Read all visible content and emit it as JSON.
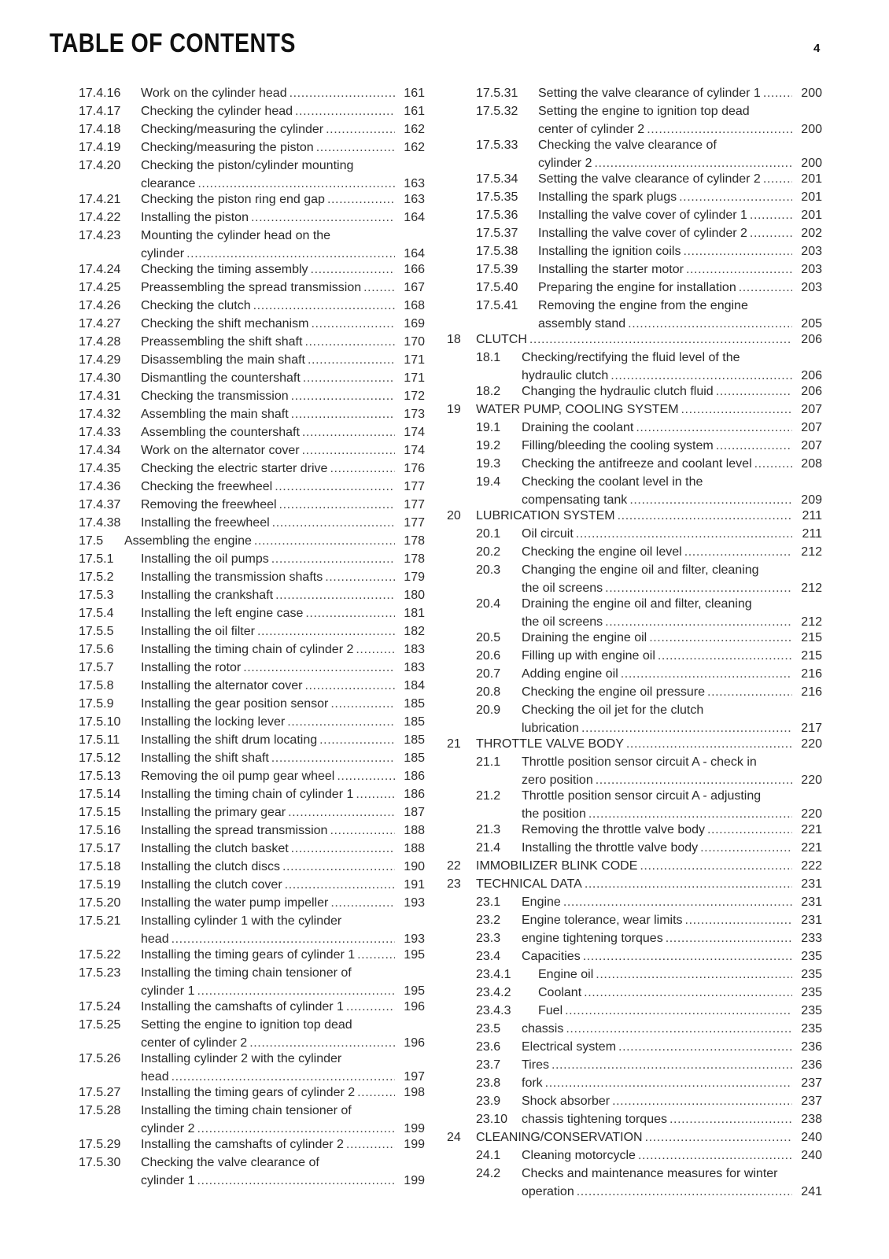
{
  "header": {
    "title": "TABLE OF CONTENTS",
    "page_number": "4"
  },
  "left": {
    "entries": [
      {
        "level": "sub",
        "num": "17.4.16",
        "lines": [
          "Work on the cylinder head"
        ],
        "page": "161"
      },
      {
        "level": "sub",
        "num": "17.4.17",
        "lines": [
          "Checking the cylinder head"
        ],
        "page": "161"
      },
      {
        "level": "sub",
        "num": "17.4.18",
        "lines": [
          "Checking/measuring the cylinder"
        ],
        "page": "162"
      },
      {
        "level": "sub",
        "num": "17.4.19",
        "lines": [
          "Checking/measuring the piston"
        ],
        "page": "162"
      },
      {
        "level": "sub",
        "num": "17.4.20",
        "lines": [
          "Checking the piston/cylinder mounting",
          "clearance"
        ],
        "page": "163"
      },
      {
        "level": "sub",
        "num": "17.4.21",
        "lines": [
          "Checking the piston ring end gap"
        ],
        "page": "163"
      },
      {
        "level": "sub",
        "num": "17.4.22",
        "lines": [
          "Installing the piston"
        ],
        "page": "164"
      },
      {
        "level": "sub",
        "num": "17.4.23",
        "lines": [
          "Mounting the cylinder head on the",
          "cylinder"
        ],
        "page": "164"
      },
      {
        "level": "sub",
        "num": "17.4.24",
        "lines": [
          "Checking the timing assembly"
        ],
        "page": "166"
      },
      {
        "level": "sub",
        "num": "17.4.25",
        "lines": [
          "Preassembling the spread transmission"
        ],
        "page": "167"
      },
      {
        "level": "sub",
        "num": "17.4.26",
        "lines": [
          "Checking the clutch"
        ],
        "page": "168"
      },
      {
        "level": "sub",
        "num": "17.4.27",
        "lines": [
          "Checking the shift mechanism"
        ],
        "page": "169"
      },
      {
        "level": "sub",
        "num": "17.4.28",
        "lines": [
          "Preassembling the shift shaft"
        ],
        "page": "170"
      },
      {
        "level": "sub",
        "num": "17.4.29",
        "lines": [
          "Disassembling the main shaft"
        ],
        "page": "171"
      },
      {
        "level": "sub",
        "num": "17.4.30",
        "lines": [
          "Dismantling the countershaft"
        ],
        "page": "171"
      },
      {
        "level": "sub",
        "num": "17.4.31",
        "lines": [
          "Checking the transmission"
        ],
        "page": "172"
      },
      {
        "level": "sub",
        "num": "17.4.32",
        "lines": [
          "Assembling the main shaft"
        ],
        "page": "173"
      },
      {
        "level": "sub",
        "num": "17.4.33",
        "lines": [
          "Assembling the countershaft"
        ],
        "page": "174"
      },
      {
        "level": "sub",
        "num": "17.4.34",
        "lines": [
          "Work on the alternator cover"
        ],
        "page": "174"
      },
      {
        "level": "sub",
        "num": "17.4.35",
        "lines": [
          "Checking the electric starter drive"
        ],
        "page": "176"
      },
      {
        "level": "sub",
        "num": "17.4.36",
        "lines": [
          "Checking the freewheel"
        ],
        "page": "177"
      },
      {
        "level": "sub",
        "num": "17.4.37",
        "lines": [
          "Removing the freewheel"
        ],
        "page": "177"
      },
      {
        "level": "sub",
        "num": "17.4.38",
        "lines": [
          "Installing the freewheel"
        ],
        "page": "177"
      },
      {
        "level": "section",
        "num": "17.5",
        "lines": [
          "Assembling the engine"
        ],
        "page": "178"
      },
      {
        "level": "sub",
        "num": "17.5.1",
        "lines": [
          "Installing the oil pumps"
        ],
        "page": "178"
      },
      {
        "level": "sub",
        "num": "17.5.2",
        "lines": [
          "Installing the transmission shafts"
        ],
        "page": "179"
      },
      {
        "level": "sub",
        "num": "17.5.3",
        "lines": [
          "Installing the crankshaft"
        ],
        "page": "180"
      },
      {
        "level": "sub",
        "num": "17.5.4",
        "lines": [
          "Installing the left engine case"
        ],
        "page": "181"
      },
      {
        "level": "sub",
        "num": "17.5.5",
        "lines": [
          "Installing the oil filter"
        ],
        "page": "182"
      },
      {
        "level": "sub",
        "num": "17.5.6",
        "lines": [
          "Installing the timing chain of cylinder 2"
        ],
        "page": "183"
      },
      {
        "level": "sub",
        "num": "17.5.7",
        "lines": [
          "Installing the rotor"
        ],
        "page": "183"
      },
      {
        "level": "sub",
        "num": "17.5.8",
        "lines": [
          "Installing the alternator cover"
        ],
        "page": "184"
      },
      {
        "level": "sub",
        "num": "17.5.9",
        "lines": [
          "Installing the gear position sensor"
        ],
        "page": "185"
      },
      {
        "level": "sub",
        "num": "17.5.10",
        "lines": [
          "Installing the locking lever"
        ],
        "page": "185"
      },
      {
        "level": "sub",
        "num": "17.5.11",
        "lines": [
          "Installing the shift drum locating"
        ],
        "page": "185"
      },
      {
        "level": "sub",
        "num": "17.5.12",
        "lines": [
          "Installing the shift shaft"
        ],
        "page": "185"
      },
      {
        "level": "sub",
        "num": "17.5.13",
        "lines": [
          "Removing the oil pump gear wheel"
        ],
        "page": "186"
      },
      {
        "level": "sub",
        "num": "17.5.14",
        "lines": [
          "Installing the timing chain of cylinder 1"
        ],
        "page": "186"
      },
      {
        "level": "sub",
        "num": "17.5.15",
        "lines": [
          "Installing the primary gear"
        ],
        "page": "187"
      },
      {
        "level": "sub",
        "num": "17.5.16",
        "lines": [
          "Installing the spread transmission"
        ],
        "page": "188"
      },
      {
        "level": "sub",
        "num": "17.5.17",
        "lines": [
          "Installing the clutch basket"
        ],
        "page": "188"
      },
      {
        "level": "sub",
        "num": "17.5.18",
        "lines": [
          "Installing the clutch discs"
        ],
        "page": "190"
      },
      {
        "level": "sub",
        "num": "17.5.19",
        "lines": [
          "Installing the clutch cover"
        ],
        "page": "191"
      },
      {
        "level": "sub",
        "num": "17.5.20",
        "lines": [
          "Installing the water pump impeller"
        ],
        "page": "193"
      },
      {
        "level": "sub",
        "num": "17.5.21",
        "lines": [
          "Installing cylinder 1 with the cylinder",
          "head"
        ],
        "page": "193"
      },
      {
        "level": "sub",
        "num": "17.5.22",
        "lines": [
          "Installing the timing gears of cylinder 1"
        ],
        "page": "195"
      },
      {
        "level": "sub",
        "num": "17.5.23",
        "lines": [
          "Installing the timing chain tensioner of",
          "cylinder 1"
        ],
        "page": "195"
      },
      {
        "level": "sub",
        "num": "17.5.24",
        "lines": [
          "Installing the camshafts of cylinder 1"
        ],
        "page": "196"
      },
      {
        "level": "sub",
        "num": "17.5.25",
        "lines": [
          "Setting the engine to ignition top dead",
          "center of cylinder 2"
        ],
        "page": "196"
      },
      {
        "level": "sub",
        "num": "17.5.26",
        "lines": [
          "Installing cylinder 2 with the cylinder",
          "head"
        ],
        "page": "197"
      },
      {
        "level": "sub",
        "num": "17.5.27",
        "lines": [
          "Installing the timing gears of cylinder 2"
        ],
        "page": "198"
      },
      {
        "level": "sub",
        "num": "17.5.28",
        "lines": [
          "Installing the timing chain tensioner of",
          "cylinder 2"
        ],
        "page": "199"
      },
      {
        "level": "sub",
        "num": "17.5.29",
        "lines": [
          "Installing the camshafts of cylinder 2"
        ],
        "page": "199"
      },
      {
        "level": "sub",
        "num": "17.5.30",
        "lines": [
          "Checking the valve clearance of",
          "cylinder 1"
        ],
        "page": "199"
      }
    ]
  },
  "right": {
    "entries": [
      {
        "level": "sub",
        "num": "17.5.31",
        "lines": [
          "Setting the valve clearance of cylinder 1"
        ],
        "page": "200"
      },
      {
        "level": "sub",
        "num": "17.5.32",
        "lines": [
          "Setting the engine to ignition top dead",
          "center of cylinder 2"
        ],
        "page": "200"
      },
      {
        "level": "sub",
        "num": "17.5.33",
        "lines": [
          "Checking the valve clearance of",
          "cylinder 2"
        ],
        "page": "200"
      },
      {
        "level": "sub",
        "num": "17.5.34",
        "lines": [
          "Setting the valve clearance of cylinder 2"
        ],
        "page": "201"
      },
      {
        "level": "sub",
        "num": "17.5.35",
        "lines": [
          "Installing the spark plugs"
        ],
        "page": "201"
      },
      {
        "level": "sub",
        "num": "17.5.36",
        "lines": [
          "Installing the valve cover of cylinder 1"
        ],
        "page": "201"
      },
      {
        "level": "sub",
        "num": "17.5.37",
        "lines": [
          "Installing the valve cover of cylinder 2"
        ],
        "page": "202"
      },
      {
        "level": "sub",
        "num": "17.5.38",
        "lines": [
          "Installing the ignition coils"
        ],
        "page": "203"
      },
      {
        "level": "sub",
        "num": "17.5.39",
        "lines": [
          "Installing the starter motor"
        ],
        "page": "203"
      },
      {
        "level": "sub",
        "num": "17.5.40",
        "lines": [
          "Preparing the engine for installation"
        ],
        "page": "203"
      },
      {
        "level": "sub",
        "num": "17.5.41",
        "lines": [
          "Removing the engine from the engine",
          "assembly stand"
        ],
        "page": "205"
      },
      {
        "level": "chapter",
        "num": "18",
        "lines": [
          "CLUTCH"
        ],
        "page": "206"
      },
      {
        "level": "section",
        "num": "18.1",
        "lines": [
          "Checking/rectifying the fluid level of the",
          "hydraulic clutch"
        ],
        "page": "206"
      },
      {
        "level": "section",
        "num": "18.2",
        "lines": [
          "Changing the hydraulic clutch fluid"
        ],
        "page": "206"
      },
      {
        "level": "chapter",
        "num": "19",
        "lines": [
          "WATER PUMP, COOLING SYSTEM"
        ],
        "page": "207"
      },
      {
        "level": "section",
        "num": "19.1",
        "lines": [
          "Draining the coolant"
        ],
        "page": "207"
      },
      {
        "level": "section",
        "num": "19.2",
        "lines": [
          "Filling/bleeding the cooling system"
        ],
        "page": "207"
      },
      {
        "level": "section",
        "num": "19.3",
        "lines": [
          "Checking the antifreeze and coolant level"
        ],
        "page": "208"
      },
      {
        "level": "section",
        "num": "19.4",
        "lines": [
          "Checking the coolant level in the",
          "compensating tank"
        ],
        "page": "209"
      },
      {
        "level": "chapter",
        "num": "20",
        "lines": [
          "LUBRICATION SYSTEM"
        ],
        "page": "211"
      },
      {
        "level": "section",
        "num": "20.1",
        "lines": [
          "Oil circuit"
        ],
        "page": "211"
      },
      {
        "level": "section",
        "num": "20.2",
        "lines": [
          "Checking the engine oil level"
        ],
        "page": "212"
      },
      {
        "level": "section",
        "num": "20.3",
        "lines": [
          "Changing the engine oil and filter, cleaning",
          "the oil screens"
        ],
        "page": "212"
      },
      {
        "level": "section",
        "num": "20.4",
        "lines": [
          "Draining the engine oil and filter, cleaning",
          "the oil screens"
        ],
        "page": "212"
      },
      {
        "level": "section",
        "num": "20.5",
        "lines": [
          "Draining the engine oil"
        ],
        "page": "215"
      },
      {
        "level": "section",
        "num": "20.6",
        "lines": [
          "Filling up with engine oil"
        ],
        "page": "215"
      },
      {
        "level": "section",
        "num": "20.7",
        "lines": [
          "Adding engine oil"
        ],
        "page": "216"
      },
      {
        "level": "section",
        "num": "20.8",
        "lines": [
          "Checking the engine oil pressure"
        ],
        "page": "216"
      },
      {
        "level": "section",
        "num": "20.9",
        "lines": [
          "Checking the oil jet for the clutch",
          "lubrication"
        ],
        "page": "217"
      },
      {
        "level": "chapter",
        "num": "21",
        "lines": [
          "THROTTLE VALVE BODY"
        ],
        "page": "220"
      },
      {
        "level": "section",
        "num": "21.1",
        "lines": [
          "Throttle position sensor circuit A - check in",
          "zero position"
        ],
        "page": "220"
      },
      {
        "level": "section",
        "num": "21.2",
        "lines": [
          "Throttle position sensor circuit A - adjusting",
          "the position"
        ],
        "page": "220"
      },
      {
        "level": "section",
        "num": "21.3",
        "lines": [
          "Removing the throttle valve body"
        ],
        "page": "221"
      },
      {
        "level": "section",
        "num": "21.4",
        "lines": [
          "Installing the throttle valve body"
        ],
        "page": "221"
      },
      {
        "level": "chapter",
        "num": "22",
        "lines": [
          "IMMOBILIZER BLINK CODE"
        ],
        "page": "222"
      },
      {
        "level": "chapter",
        "num": "23",
        "lines": [
          "TECHNICAL DATA"
        ],
        "page": "231"
      },
      {
        "level": "section",
        "num": "23.1",
        "lines": [
          "Engine"
        ],
        "page": "231"
      },
      {
        "level": "section",
        "num": "23.2",
        "lines": [
          "Engine tolerance, wear limits"
        ],
        "page": "231"
      },
      {
        "level": "section",
        "num": "23.3",
        "lines": [
          "engine tightening torques"
        ],
        "page": "233"
      },
      {
        "level": "section",
        "num": "23.4",
        "lines": [
          "Capacities"
        ],
        "page": "235"
      },
      {
        "level": "sub",
        "num": "23.4.1",
        "lines": [
          "Engine oil"
        ],
        "page": "235"
      },
      {
        "level": "sub",
        "num": "23.4.2",
        "lines": [
          "Coolant"
        ],
        "page": "235"
      },
      {
        "level": "sub",
        "num": "23.4.3",
        "lines": [
          "Fuel"
        ],
        "page": "235"
      },
      {
        "level": "section",
        "num": "23.5",
        "lines": [
          "chassis"
        ],
        "page": "235"
      },
      {
        "level": "section",
        "num": "23.6",
        "lines": [
          "Electrical system"
        ],
        "page": "236"
      },
      {
        "level": "section",
        "num": "23.7",
        "lines": [
          "Tires"
        ],
        "page": "236"
      },
      {
        "level": "section",
        "num": "23.8",
        "lines": [
          "fork"
        ],
        "page": "237"
      },
      {
        "level": "section",
        "num": "23.9",
        "lines": [
          "Shock absorber"
        ],
        "page": "237"
      },
      {
        "level": "section",
        "num": "23.10",
        "lines": [
          "chassis tightening torques"
        ],
        "page": "238"
      },
      {
        "level": "chapter",
        "num": "24",
        "lines": [
          "CLEANING/CONSERVATION"
        ],
        "page": "240"
      },
      {
        "level": "section",
        "num": "24.1",
        "lines": [
          "Cleaning motorcycle"
        ],
        "page": "240"
      },
      {
        "level": "section",
        "num": "24.2",
        "lines": [
          "Checks and maintenance measures for winter",
          "operation"
        ],
        "page": "241"
      }
    ]
  }
}
